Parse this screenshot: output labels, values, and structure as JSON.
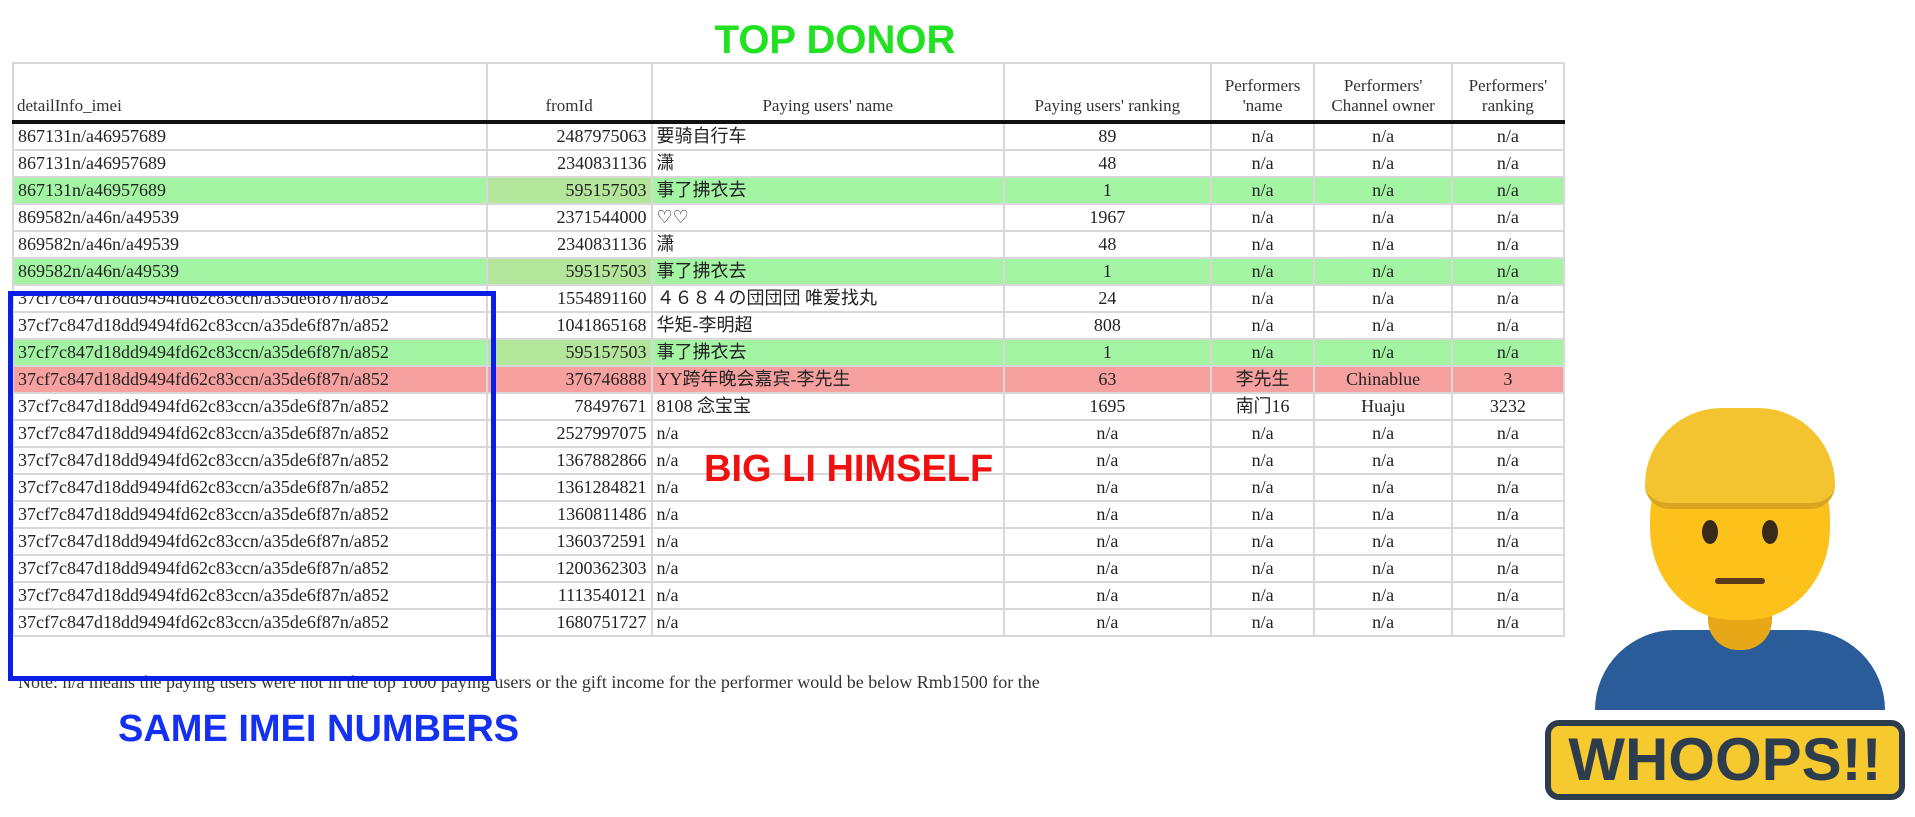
{
  "annotations": {
    "top_donor": "TOP DONOR",
    "big_li": "BIG LI HIMSELF",
    "same_imei": "SAME IMEI NUMBERS",
    "whoops": "WHOOPS!!",
    "colors": {
      "green": "#22e022",
      "red": "#f01010",
      "blue": "#1430f0",
      "highlight_green": "#a3f5a3",
      "highlight_red": "#f7a0a0"
    },
    "emoji": "man-frowning-emoji"
  },
  "table": {
    "headers": [
      "detailInfo_imei",
      "fromId",
      "Paying users' name",
      "Paying users' ranking",
      "Performers 'name",
      "Performers' Channel owner",
      "Performers' ranking"
    ],
    "rows": [
      {
        "h": "",
        "c": [
          "867131n/a46957689",
          "2487975063",
          "要骑自行车",
          "89",
          "n/a",
          "n/a",
          "n/a"
        ]
      },
      {
        "h": "",
        "c": [
          "867131n/a46957689",
          "2340831136",
          "潇",
          "48",
          "n/a",
          "n/a",
          "n/a"
        ]
      },
      {
        "h": "green",
        "c": [
          "867131n/a46957689",
          "595157503",
          "事了拂衣去",
          "1",
          "n/a",
          "n/a",
          "n/a"
        ]
      },
      {
        "h": "",
        "c": [
          "869582n/a46n/a49539",
          "2371544000",
          "♡♡",
          "1967",
          "n/a",
          "n/a",
          "n/a"
        ]
      },
      {
        "h": "",
        "c": [
          "869582n/a46n/a49539",
          "2340831136",
          "潇",
          "48",
          "n/a",
          "n/a",
          "n/a"
        ]
      },
      {
        "h": "green",
        "c": [
          "869582n/a46n/a49539",
          "595157503",
          "事了拂衣去",
          "1",
          "n/a",
          "n/a",
          "n/a"
        ]
      },
      {
        "h": "",
        "c": [
          "37cf7c847d18dd9494fd62c83ccn/a35de6f87n/a852",
          "1554891160",
          "４６８４の団団団 唯爱找丸",
          "24",
          "n/a",
          "n/a",
          "n/a"
        ]
      },
      {
        "h": "",
        "c": [
          "37cf7c847d18dd9494fd62c83ccn/a35de6f87n/a852",
          "1041865168",
          "华矩-李明超",
          "808",
          "n/a",
          "n/a",
          "n/a"
        ]
      },
      {
        "h": "green",
        "c": [
          "37cf7c847d18dd9494fd62c83ccn/a35de6f87n/a852",
          "595157503",
          "事了拂衣去",
          "1",
          "n/a",
          "n/a",
          "n/a"
        ]
      },
      {
        "h": "red",
        "c": [
          "37cf7c847d18dd9494fd62c83ccn/a35de6f87n/a852",
          "376746888",
          "YY跨年晚会嘉宾-李先生",
          "63",
          "李先生",
          "Chinablue",
          "3"
        ]
      },
      {
        "h": "",
        "c": [
          "37cf7c847d18dd9494fd62c83ccn/a35de6f87n/a852",
          "78497671",
          "8108 念宝宝",
          "1695",
          "南门16",
          "Huaju",
          "3232"
        ]
      },
      {
        "h": "",
        "c": [
          "37cf7c847d18dd9494fd62c83ccn/a35de6f87n/a852",
          "2527997075",
          "n/a",
          "n/a",
          "n/a",
          "n/a",
          "n/a"
        ]
      },
      {
        "h": "",
        "c": [
          "37cf7c847d18dd9494fd62c83ccn/a35de6f87n/a852",
          "1367882866",
          "n/a",
          "n/a",
          "n/a",
          "n/a",
          "n/a"
        ]
      },
      {
        "h": "",
        "c": [
          "37cf7c847d18dd9494fd62c83ccn/a35de6f87n/a852",
          "1361284821",
          "n/a",
          "n/a",
          "n/a",
          "n/a",
          "n/a"
        ]
      },
      {
        "h": "",
        "c": [
          "37cf7c847d18dd9494fd62c83ccn/a35de6f87n/a852",
          "1360811486",
          "n/a",
          "n/a",
          "n/a",
          "n/a",
          "n/a"
        ]
      },
      {
        "h": "",
        "c": [
          "37cf7c847d18dd9494fd62c83ccn/a35de6f87n/a852",
          "1360372591",
          "n/a",
          "n/a",
          "n/a",
          "n/a",
          "n/a"
        ]
      },
      {
        "h": "",
        "c": [
          "37cf7c847d18dd9494fd62c83ccn/a35de6f87n/a852",
          "1200362303",
          "n/a",
          "n/a",
          "n/a",
          "n/a",
          "n/a"
        ]
      },
      {
        "h": "",
        "c": [
          "37cf7c847d18dd9494fd62c83ccn/a35de6f87n/a852",
          "1113540121",
          "n/a",
          "n/a",
          "n/a",
          "n/a",
          "n/a"
        ]
      },
      {
        "h": "",
        "c": [
          "37cf7c847d18dd9494fd62c83ccn/a35de6f87n/a852",
          "1680751727",
          "n/a",
          "n/a",
          "n/a",
          "n/a",
          "n/a"
        ]
      }
    ],
    "note": "Note: n/a means the paying users were not in the top 1000 paying users or the gift income for the performer would be below Rmb1500 for the"
  }
}
